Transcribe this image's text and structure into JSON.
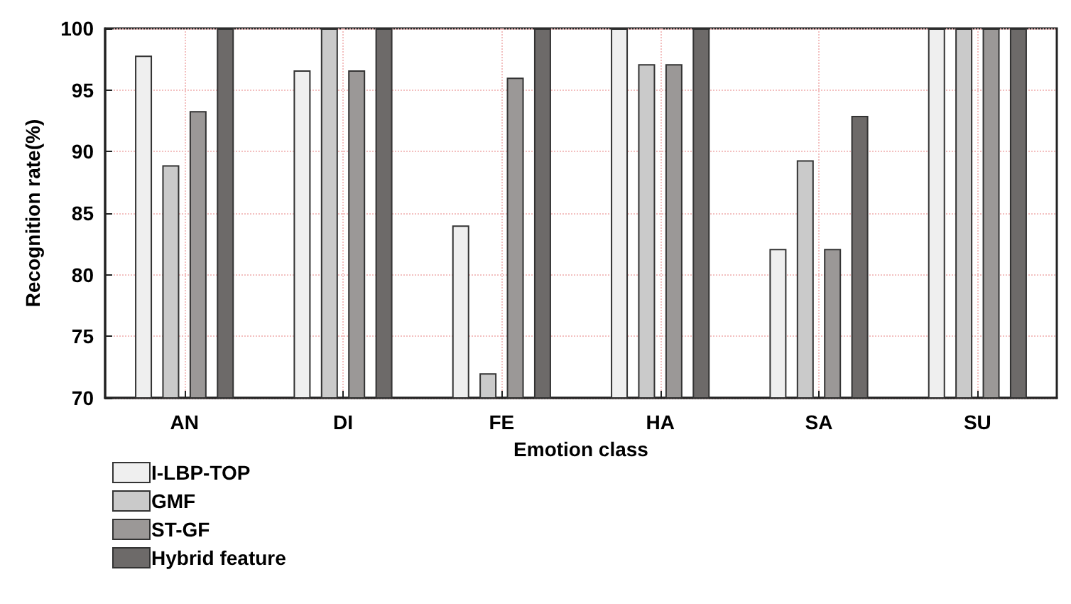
{
  "chart_data": {
    "type": "bar",
    "xlabel": "Emotion class",
    "ylabel": "Recognition rate(%)",
    "categories": [
      "AN",
      "DI",
      "FE",
      "HA",
      "SA",
      "SU"
    ],
    "series": [
      {
        "name": "I-LBP-TOP",
        "color": "#efefef",
        "values": [
          97.8,
          96.6,
          84.0,
          100,
          82.1,
          100
        ]
      },
      {
        "name": "GMF",
        "color": "#cacaca",
        "values": [
          88.9,
          100,
          72.0,
          97.1,
          89.3,
          100
        ]
      },
      {
        "name": "ST-GF",
        "color": "#9b9897",
        "values": [
          93.3,
          96.6,
          96.0,
          97.1,
          82.1,
          100
        ]
      },
      {
        "name": "Hybrid feature",
        "color": "#6d6a69",
        "values": [
          100,
          100,
          100,
          100,
          92.9,
          100
        ]
      }
    ],
    "ylim": [
      70,
      100
    ],
    "yticks": [
      70,
      75,
      80,
      85,
      90,
      95,
      100
    ],
    "grid": true,
    "legend": "bottom left"
  }
}
